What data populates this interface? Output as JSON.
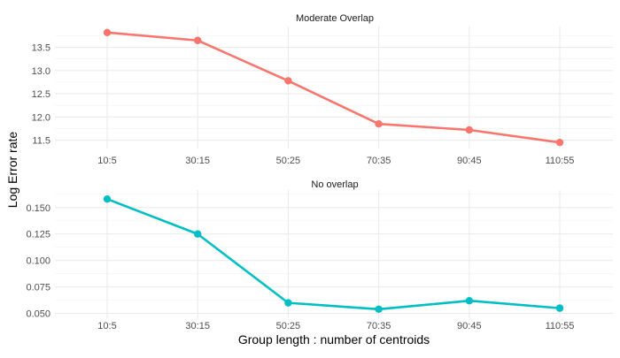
{
  "figure": {
    "ylabel": "Log Error rate",
    "xlabel": "Group length : number of centroids"
  },
  "chart_data": [
    {
      "type": "line",
      "title": "Moderate Overlap",
      "categories": [
        "10:5",
        "30:15",
        "50:25",
        "70:35",
        "90:45",
        "110:55"
      ],
      "values": [
        13.82,
        13.65,
        12.78,
        11.85,
        11.72,
        11.45
      ],
      "yticks": [
        11.5,
        12.0,
        12.5,
        13.0,
        13.5
      ],
      "ylim": [
        11.32,
        13.95
      ],
      "color": "#F8766D",
      "grid": true
    },
    {
      "type": "line",
      "title": "No overlap",
      "categories": [
        "10:5",
        "30:15",
        "50:25",
        "70:35",
        "90:45",
        "110:55"
      ],
      "values": [
        0.158,
        0.125,
        0.06,
        0.054,
        0.062,
        0.055
      ],
      "yticks": [
        0.05,
        0.075,
        0.1,
        0.125,
        0.15
      ],
      "ylim": [
        0.0455,
        0.1665
      ],
      "color": "#00BFC4",
      "grid": true
    }
  ]
}
